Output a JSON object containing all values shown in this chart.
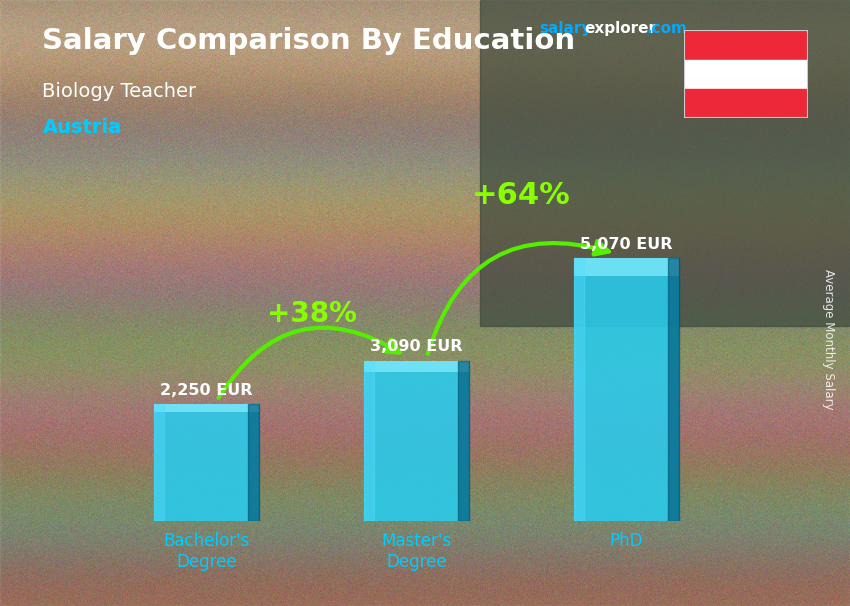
{
  "title": "Salary Comparison By Education",
  "subtitle": "Biology Teacher",
  "country": "Austria",
  "ylabel": "Average Monthly Salary",
  "categories": [
    "Bachelor's\nDegree",
    "Master's\nDegree",
    "PhD"
  ],
  "values": [
    2250,
    3090,
    5070
  ],
  "value_labels": [
    "2,250 EUR",
    "3,090 EUR",
    "5,070 EUR"
  ],
  "pct_labels": [
    "+38%",
    "+64%"
  ],
  "bar_main_color": "#00c8e8",
  "bar_light_color": "#55ddff",
  "bar_dark_color": "#0099bb",
  "bar_side_color": "#007799",
  "title_color": "#ffffff",
  "subtitle_color": "#ffffff",
  "country_color": "#00ccff",
  "pct_color": "#88ff00",
  "arrow_color": "#55ee00",
  "value_label_color": "#ffffff",
  "tick_label_color": "#00ccff",
  "xlim": [
    -0.7,
    2.7
  ],
  "ylim": [
    0,
    7000
  ],
  "bar_width": 0.5,
  "watermark_salary_color": "#00aaff",
  "watermark_explorer_color": "#ffffff",
  "watermark_dot_com_color": "#00aaff",
  "bg_colors": [
    "#8B7355",
    "#9B8B6E",
    "#7A6B50",
    "#6B5A40",
    "#5A4A35"
  ],
  "flag_red": "#ED2939",
  "flag_white": "#ffffff"
}
